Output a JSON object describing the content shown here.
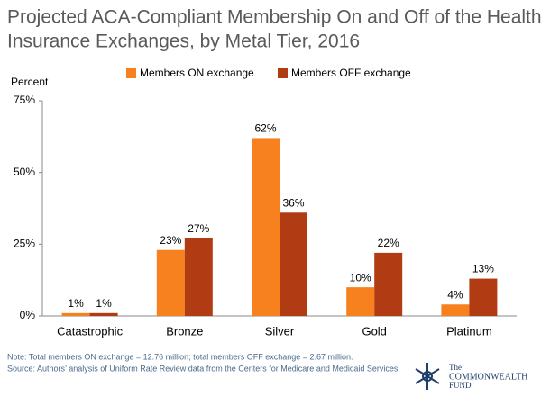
{
  "chart_data": {
    "type": "bar",
    "title": [
      "Projected ACA-Compliant Membership On and Off of the Health",
      "Insurance Exchanges, by Metal Tier, 2016"
    ],
    "y_label": "Percent",
    "categories": [
      "Catastrophic",
      "Bronze",
      "Silver",
      "Gold",
      "Platinum"
    ],
    "series": [
      {
        "name": "Members ON exchange",
        "color": "#f7811f",
        "values": [
          1,
          23,
          62,
          10,
          4
        ],
        "value_labels": [
          "1%",
          "23%",
          "62%",
          "10%",
          "4%"
        ]
      },
      {
        "name": "Members OFF exchange",
        "color": "#b13b13",
        "values": [
          1,
          27,
          36,
          22,
          13
        ],
        "value_labels": [
          "1%",
          "27%",
          "36%",
          "22%",
          "13%"
        ]
      }
    ],
    "ylim": [
      0,
      75
    ],
    "yticks": [
      {
        "value": 0,
        "label": "0%"
      },
      {
        "value": 25,
        "label": "25%"
      },
      {
        "value": 50,
        "label": "50%"
      },
      {
        "value": 75,
        "label": "75%"
      }
    ],
    "grid": false,
    "notes": [
      "Note: Total members ON exchange = 12.76 million; total members OFF exchange = 2.67 million.",
      "Source: Authors’ analysis of Uniform Rate Review data from the Centers for Medicare and Medicaid Services."
    ],
    "logo": [
      "The",
      "COMMONWEALTH",
      "FUND"
    ]
  }
}
